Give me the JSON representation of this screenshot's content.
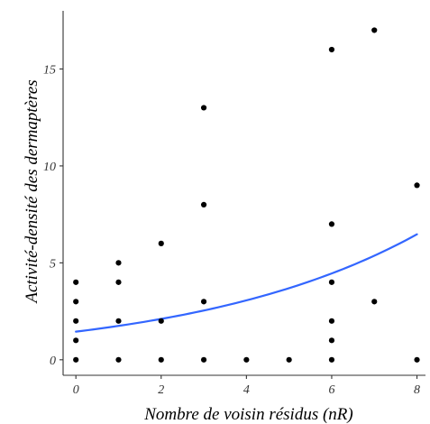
{
  "chart_data": {
    "type": "scatter",
    "xlabel": "Nombre de voisin résidus (nR)",
    "ylabel": "Activité-densité des dermaptères",
    "xlim": [
      -0.3,
      8.2
    ],
    "ylim": [
      -0.8,
      18
    ],
    "x_ticks": [
      0,
      2,
      4,
      6,
      8
    ],
    "y_ticks": [
      0,
      5,
      10,
      15
    ],
    "x_tick_labels": [
      "0",
      "2",
      "4",
      "6",
      "8"
    ],
    "y_tick_labels": [
      "0",
      "5",
      "10",
      "15"
    ],
    "grid": false,
    "legend": "none",
    "points": [
      {
        "x": 0,
        "y": 0
      },
      {
        "x": 0,
        "y": 1
      },
      {
        "x": 0,
        "y": 2
      },
      {
        "x": 0,
        "y": 3
      },
      {
        "x": 0,
        "y": 4
      },
      {
        "x": 1,
        "y": 0
      },
      {
        "x": 1,
        "y": 2
      },
      {
        "x": 1,
        "y": 4
      },
      {
        "x": 1,
        "y": 5
      },
      {
        "x": 2,
        "y": 0
      },
      {
        "x": 2,
        "y": 2
      },
      {
        "x": 2,
        "y": 6
      },
      {
        "x": 3,
        "y": 0
      },
      {
        "x": 3,
        "y": 3
      },
      {
        "x": 3,
        "y": 8
      },
      {
        "x": 3,
        "y": 13
      },
      {
        "x": 4,
        "y": 0
      },
      {
        "x": 5,
        "y": 0
      },
      {
        "x": 6,
        "y": 0
      },
      {
        "x": 6,
        "y": 1
      },
      {
        "x": 6,
        "y": 2
      },
      {
        "x": 6,
        "y": 4
      },
      {
        "x": 6,
        "y": 7
      },
      {
        "x": 6,
        "y": 16
      },
      {
        "x": 7,
        "y": 3
      },
      {
        "x": 7,
        "y": 17
      },
      {
        "x": 8,
        "y": 0
      },
      {
        "x": 8,
        "y": 9
      }
    ],
    "trend_line": {
      "model": "exponential",
      "intercept": 1.45,
      "growth": 0.187,
      "x_range": [
        0,
        8
      ]
    },
    "colors": {
      "points": "#000000",
      "trend": "#3366ff",
      "axes": "#333333"
    }
  }
}
